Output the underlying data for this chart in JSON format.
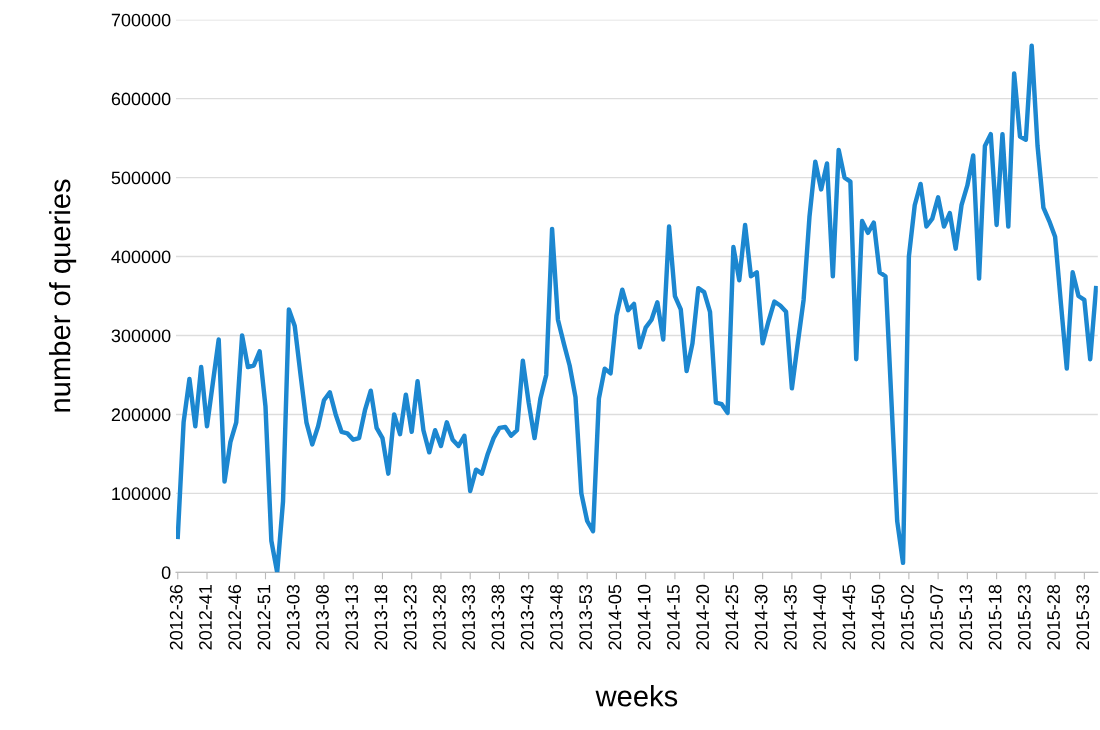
{
  "chart_data": {
    "type": "line",
    "xlabel": "weeks",
    "ylabel": "number of queries",
    "categories": [
      "2012-36",
      null,
      null,
      null,
      null,
      "2012-41",
      null,
      null,
      null,
      null,
      "2012-46",
      null,
      null,
      null,
      null,
      "2012-51",
      null,
      null,
      null,
      null,
      "2013-03",
      null,
      null,
      null,
      null,
      "2013-08",
      null,
      null,
      null,
      null,
      "2013-13",
      null,
      null,
      null,
      null,
      "2013-18",
      null,
      null,
      null,
      null,
      "2013-23",
      null,
      null,
      null,
      null,
      "2013-28",
      null,
      null,
      null,
      null,
      "2013-33",
      null,
      null,
      null,
      null,
      "2013-38",
      null,
      null,
      null,
      null,
      "2013-43",
      null,
      null,
      null,
      null,
      "2013-48",
      null,
      null,
      null,
      null,
      "2013-53",
      null,
      null,
      null,
      null,
      "2014-05",
      null,
      null,
      null,
      null,
      "2014-10",
      null,
      null,
      null,
      null,
      "2014-15",
      null,
      null,
      null,
      null,
      "2014-20",
      null,
      null,
      null,
      null,
      "2014-25",
      null,
      null,
      null,
      null,
      "2014-30",
      null,
      null,
      null,
      null,
      "2014-35",
      null,
      null,
      null,
      null,
      "2014-40",
      null,
      null,
      null,
      null,
      "2014-45",
      null,
      null,
      null,
      null,
      "2014-50",
      null,
      null,
      null,
      null,
      "2015-02",
      null,
      null,
      null,
      null,
      "2015-07",
      null,
      null,
      null,
      null,
      "2015-13",
      null,
      null,
      null,
      null,
      "2015-18",
      null,
      null,
      null,
      null,
      "2015-23",
      null,
      null,
      null,
      null,
      "2015-28",
      null,
      null,
      null,
      null,
      "2015-33",
      null,
      null
    ],
    "series": [
      {
        "color": "#1c87d0",
        "values": [
          45000,
          190000,
          245000,
          185000,
          260000,
          185000,
          240000,
          295000,
          115000,
          165000,
          190000,
          300000,
          260000,
          262000,
          280000,
          210000,
          40000,
          0,
          90000,
          333000,
          312000,
          250000,
          190000,
          162000,
          185000,
          218000,
          228000,
          200000,
          178000,
          176000,
          168000,
          170000,
          205000,
          230000,
          183000,
          170000,
          125000,
          200000,
          175000,
          225000,
          178000,
          242000,
          180000,
          152000,
          180000,
          160000,
          190000,
          168000,
          160000,
          173000,
          103000,
          130000,
          125000,
          150000,
          170000,
          183000,
          184000,
          173000,
          180000,
          268000,
          215000,
          170000,
          220000,
          250000,
          435000,
          320000,
          290000,
          262000,
          222000,
          100000,
          65000,
          52000,
          220000,
          258000,
          252000,
          325000,
          358000,
          332000,
          340000,
          285000,
          310000,
          320000,
          342000,
          295000,
          438000,
          350000,
          333000,
          255000,
          290000,
          360000,
          355000,
          330000,
          215000,
          213000,
          202000,
          412000,
          370000,
          440000,
          375000,
          380000,
          290000,
          318000,
          343000,
          338000,
          330000,
          233000,
          290000,
          345000,
          450000,
          520000,
          485000,
          518000,
          375000,
          535000,
          500000,
          495000,
          270000,
          445000,
          430000,
          443000,
          380000,
          375000,
          220000,
          65000,
          12000,
          400000,
          465000,
          492000,
          438000,
          448000,
          475000,
          438000,
          455000,
          410000,
          465000,
          490000,
          528000,
          372000,
          540000,
          555000,
          440000,
          555000,
          438000,
          632000,
          552000,
          548000,
          667000,
          540000,
          462000,
          445000,
          425000,
          340000,
          258000,
          380000,
          350000,
          345000,
          270000,
          360000
        ]
      }
    ],
    "ylim": [
      0,
      700000
    ],
    "yticks": [
      0,
      100000,
      200000,
      300000,
      400000,
      500000,
      600000,
      700000
    ],
    "grid": "y",
    "legend": false,
    "marker": "none",
    "line_style": "solid"
  }
}
